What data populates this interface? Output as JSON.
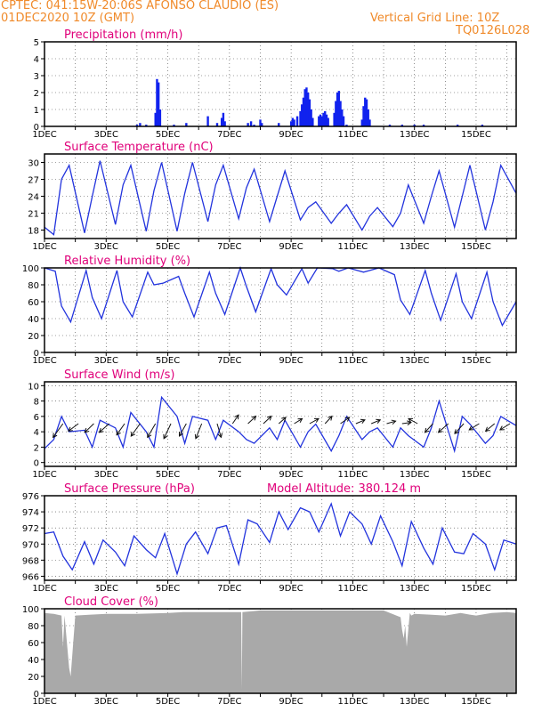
{
  "header": {
    "line1": "CPTEC:   041:15W-20:06S   AFONSO CLAUDIO (ES)",
    "line2": "01DEC2020 10Z (GMT)",
    "grid_note": "Vertical Grid Line: 10Z",
    "code": "TQ0126L028"
  },
  "colors": {
    "header": "#f08a2a",
    "title": "#e0007a",
    "line": "#2233dd",
    "bar": "#1122ee",
    "cloud": "#a9a9a9"
  },
  "x_ticks": [
    "1DEC",
    "3DEC",
    "5DEC",
    "7DEC",
    "9DEC",
    "11DEC",
    "13DEC",
    "15DEC"
  ],
  "chart_data": [
    {
      "type": "bar",
      "title": "Precipitation (mm/h)",
      "ylim": [
        0,
        5
      ],
      "yticks": [
        0,
        1,
        2,
        3,
        4,
        5
      ],
      "x_unit": "day",
      "x_range": [
        0,
        15.3
      ],
      "bars": [
        [
          3.0,
          0.1
        ],
        [
          3.1,
          0.2
        ],
        [
          3.3,
          0.1
        ],
        [
          3.6,
          0.8
        ],
        [
          3.65,
          2.8
        ],
        [
          3.7,
          2.6
        ],
        [
          3.75,
          1.0
        ],
        [
          4.2,
          0.1
        ],
        [
          4.6,
          0.2
        ],
        [
          5.3,
          0.6
        ],
        [
          5.6,
          0.2
        ],
        [
          5.75,
          0.5
        ],
        [
          5.8,
          0.8
        ],
        [
          5.85,
          0.3
        ],
        [
          6.6,
          0.2
        ],
        [
          6.7,
          0.3
        ],
        [
          6.8,
          0.1
        ],
        [
          7.0,
          0.4
        ],
        [
          7.05,
          0.2
        ],
        [
          7.6,
          0.2
        ],
        [
          8.0,
          0.3
        ],
        [
          8.05,
          0.5
        ],
        [
          8.1,
          0.4
        ],
        [
          8.2,
          0.6
        ],
        [
          8.3,
          0.9
        ],
        [
          8.35,
          1.3
        ],
        [
          8.4,
          1.7
        ],
        [
          8.45,
          2.2
        ],
        [
          8.5,
          2.3
        ],
        [
          8.55,
          2.0
        ],
        [
          8.6,
          1.6
        ],
        [
          8.65,
          1.0
        ],
        [
          8.7,
          0.5
        ],
        [
          8.9,
          0.6
        ],
        [
          8.95,
          0.7
        ],
        [
          9.0,
          0.6
        ],
        [
          9.05,
          0.8
        ],
        [
          9.1,
          0.9
        ],
        [
          9.15,
          0.7
        ],
        [
          9.2,
          0.5
        ],
        [
          9.4,
          0.8
        ],
        [
          9.45,
          1.5
        ],
        [
          9.5,
          2.0
        ],
        [
          9.55,
          2.1
        ],
        [
          9.6,
          1.5
        ],
        [
          9.65,
          1.0
        ],
        [
          9.7,
          0.6
        ],
        [
          9.8,
          0.1
        ],
        [
          10.3,
          0.4
        ],
        [
          10.35,
          1.2
        ],
        [
          10.4,
          1.7
        ],
        [
          10.45,
          1.6
        ],
        [
          10.5,
          1.0
        ],
        [
          10.55,
          0.4
        ],
        [
          11.2,
          0.1
        ],
        [
          11.6,
          0.1
        ],
        [
          12.0,
          0.1
        ],
        [
          12.3,
          0.1
        ],
        [
          13.4,
          0.1
        ],
        [
          14.2,
          0.1
        ]
      ]
    },
    {
      "type": "line",
      "title": "Surface Temperature (nC)",
      "ylim": [
        16.5,
        31.5
      ],
      "yticks": [
        18,
        21,
        24,
        27,
        30
      ],
      "x": [
        0,
        0.3,
        0.55,
        0.8,
        1.3,
        1.55,
        1.8,
        2.3,
        2.55,
        2.8,
        3.3,
        3.55,
        3.8,
        4.3,
        4.55,
        4.8,
        5.3,
        5.55,
        5.8,
        6.3,
        6.55,
        6.8,
        7.3,
        7.55,
        7.8,
        8.3,
        8.55,
        8.8,
        9.3,
        9.55,
        9.8,
        10.3,
        10.55,
        10.8,
        11.3,
        11.55,
        11.8,
        12.3,
        12.55,
        12.8,
        13.3,
        13.55,
        13.8,
        14.3,
        14.55,
        14.8,
        15.3
      ],
      "y": [
        18.5,
        17.2,
        27.0,
        29.5,
        17.5,
        24.0,
        30.3,
        19.0,
        26.0,
        29.5,
        17.8,
        25.0,
        30.0,
        17.8,
        24.5,
        30.0,
        19.5,
        26.0,
        29.5,
        20.0,
        25.5,
        28.8,
        19.5,
        24.0,
        28.5,
        19.8,
        22.0,
        23.0,
        19.2,
        21.0,
        22.5,
        18.0,
        20.5,
        22.0,
        18.6,
        21.0,
        26.0,
        19.2,
        24.0,
        28.5,
        18.5,
        24.0,
        29.5,
        18.0,
        23.0,
        29.5,
        24.5
      ]
    },
    {
      "type": "line",
      "title": "Relative Humidity (%)",
      "ylim": [
        0,
        100
      ],
      "yticks": [
        0,
        20,
        40,
        60,
        80,
        100
      ],
      "x": [
        0,
        0.35,
        0.55,
        0.85,
        1.35,
        1.55,
        1.85,
        2.35,
        2.55,
        2.85,
        3.35,
        3.55,
        3.85,
        4.35,
        4.55,
        4.85,
        5.35,
        5.55,
        5.85,
        6.35,
        6.55,
        6.85,
        7.35,
        7.55,
        7.85,
        8.35,
        8.55,
        8.85,
        9.35,
        9.55,
        9.85,
        10.35,
        10.55,
        10.85,
        11.35,
        11.55,
        11.85,
        12.35,
        12.55,
        12.85,
        13.35,
        13.55,
        13.85,
        14.35,
        14.55,
        14.85,
        15.3
      ],
      "y": [
        100,
        96,
        55,
        36,
        97,
        65,
        40,
        97,
        60,
        42,
        95,
        80,
        82,
        90,
        70,
        42,
        95,
        70,
        45,
        100,
        78,
        48,
        99,
        80,
        68,
        99,
        82,
        100,
        99,
        96,
        100,
        95,
        97,
        100,
        92,
        62,
        45,
        97,
        70,
        38,
        93,
        60,
        40,
        95,
        60,
        32,
        60
      ]
    },
    {
      "type": "line",
      "title": "Surface Wind (m/s)",
      "ylim": [
        -0.5,
        10.5
      ],
      "yticks": [
        0,
        2,
        4,
        6,
        8,
        10
      ],
      "x": [
        0,
        0.3,
        0.55,
        0.8,
        1.3,
        1.55,
        1.8,
        2.3,
        2.55,
        2.8,
        3.3,
        3.55,
        3.8,
        4.3,
        4.55,
        4.8,
        5.3,
        5.55,
        5.8,
        6.3,
        6.55,
        6.8,
        7.3,
        7.55,
        7.8,
        8.3,
        8.55,
        8.8,
        9.3,
        9.55,
        9.8,
        10.3,
        10.55,
        10.8,
        11.3,
        11.55,
        11.8,
        12.3,
        12.55,
        12.8,
        13.3,
        13.55,
        13.8,
        14.3,
        14.55,
        14.8,
        15.3
      ],
      "y": [
        1.8,
        3.0,
        6.0,
        4.0,
        4.2,
        2.0,
        5.5,
        4.5,
        2.0,
        6.5,
        4.0,
        2.0,
        8.5,
        6.0,
        2.5,
        6.0,
        5.5,
        3.0,
        5.5,
        4.0,
        3.0,
        2.5,
        4.5,
        3.0,
        5.5,
        2.0,
        4.0,
        5.0,
        1.5,
        3.5,
        6.0,
        3.0,
        4.0,
        4.5,
        2.0,
        4.5,
        3.5,
        2.0,
        4.5,
        8.0,
        1.5,
        6.0,
        5.0,
        2.5,
        3.5,
        6.0,
        4.8
      ],
      "vectors": [
        [
          0.6,
          -1,
          -1.1
        ],
        [
          1.1,
          -1,
          -0.6
        ],
        [
          1.6,
          -0.9,
          -0.7
        ],
        [
          2.1,
          -1,
          -0.7
        ],
        [
          2.6,
          -0.8,
          -0.9
        ],
        [
          3.1,
          -0.9,
          -1.0
        ],
        [
          3.6,
          -0.8,
          -1.1
        ],
        [
          4.1,
          -0.7,
          -1.2
        ],
        [
          4.6,
          -0.7,
          -1.0
        ],
        [
          5.1,
          -0.6,
          -1.2
        ],
        [
          5.6,
          0.4,
          -1.1
        ],
        [
          6.1,
          0.6,
          0.7
        ],
        [
          6.6,
          0.8,
          0.6
        ],
        [
          7.1,
          0.8,
          0.6
        ],
        [
          7.6,
          0.7,
          0.5
        ],
        [
          8.1,
          0.8,
          0.4
        ],
        [
          8.6,
          0.9,
          0.4
        ],
        [
          9.1,
          0.7,
          0.6
        ],
        [
          9.6,
          0.9,
          0.5
        ],
        [
          10.1,
          0.9,
          0.3
        ],
        [
          10.6,
          0.9,
          0.3
        ],
        [
          11.1,
          0.9,
          0.2
        ],
        [
          11.6,
          0.9,
          0.1
        ],
        [
          12.1,
          -0.9,
          0.4
        ],
        [
          12.6,
          -0.8,
          -0.7
        ],
        [
          13.1,
          -1,
          -0.7
        ],
        [
          13.6,
          -0.9,
          -0.8
        ],
        [
          14.1,
          -1,
          -0.5
        ],
        [
          14.6,
          -0.9,
          -0.6
        ],
        [
          15.1,
          -1,
          -0.5
        ]
      ]
    },
    {
      "type": "line",
      "title": "Surface Pressure (hPa)",
      "note": "Model Altitude: 380.124 m",
      "ylim": [
        965.5,
        976
      ],
      "yticks": [
        966,
        968,
        970,
        972,
        974,
        976
      ],
      "x": [
        0,
        0.3,
        0.6,
        0.9,
        1.3,
        1.6,
        1.9,
        2.3,
        2.6,
        2.9,
        3.3,
        3.6,
        3.9,
        4.3,
        4.6,
        4.9,
        5.3,
        5.6,
        5.9,
        6.3,
        6.6,
        6.9,
        7.3,
        7.6,
        7.9,
        8.3,
        8.6,
        8.9,
        9.3,
        9.6,
        9.9,
        10.3,
        10.6,
        10.9,
        11.3,
        11.6,
        11.9,
        12.3,
        12.6,
        12.9,
        13.3,
        13.6,
        13.9,
        14.3,
        14.6,
        14.9,
        15.3
      ],
      "y": [
        971.3,
        971.5,
        968.5,
        966.8,
        970.3,
        967.5,
        970.5,
        969.0,
        967.3,
        971.0,
        969.3,
        968.3,
        971.3,
        966.3,
        970.0,
        971.5,
        968.8,
        972.0,
        972.3,
        967.5,
        973.0,
        972.5,
        970.2,
        974.0,
        971.8,
        974.5,
        974.0,
        971.5,
        975.0,
        971.0,
        974.0,
        972.5,
        970.0,
        973.5,
        970.3,
        967.3,
        972.8,
        969.5,
        967.5,
        972.0,
        969.0,
        968.8,
        971.3,
        970.0,
        966.8,
        970.5,
        970.0
      ]
    },
    {
      "type": "area",
      "title": "Cloud Cover (%)",
      "ylim": [
        0,
        100
      ],
      "yticks": [
        0,
        20,
        40,
        60,
        80,
        100
      ],
      "x": [
        0,
        0.3,
        0.55,
        0.6,
        0.65,
        0.8,
        0.85,
        1.0,
        1.5,
        2.0,
        3.0,
        4.0,
        4.5,
        5.0,
        6.0,
        6.38,
        6.4,
        6.42,
        7.0,
        8.0,
        9.0,
        10.0,
        11.0,
        11.55,
        11.6,
        11.65,
        11.7,
        11.75,
        11.85,
        11.9,
        12.0,
        12.5,
        13.0,
        13.5,
        13.8,
        14.0,
        14.5,
        15.0,
        15.3
      ],
      "y": [
        95,
        94,
        92,
        55,
        92,
        30,
        20,
        92,
        93,
        94,
        94,
        95,
        96,
        96,
        96,
        96,
        5,
        96,
        98,
        98,
        98,
        98,
        98,
        90,
        75,
        65,
        80,
        55,
        95,
        92,
        94,
        93,
        92,
        95,
        93,
        92,
        95,
        96,
        95
      ]
    }
  ]
}
